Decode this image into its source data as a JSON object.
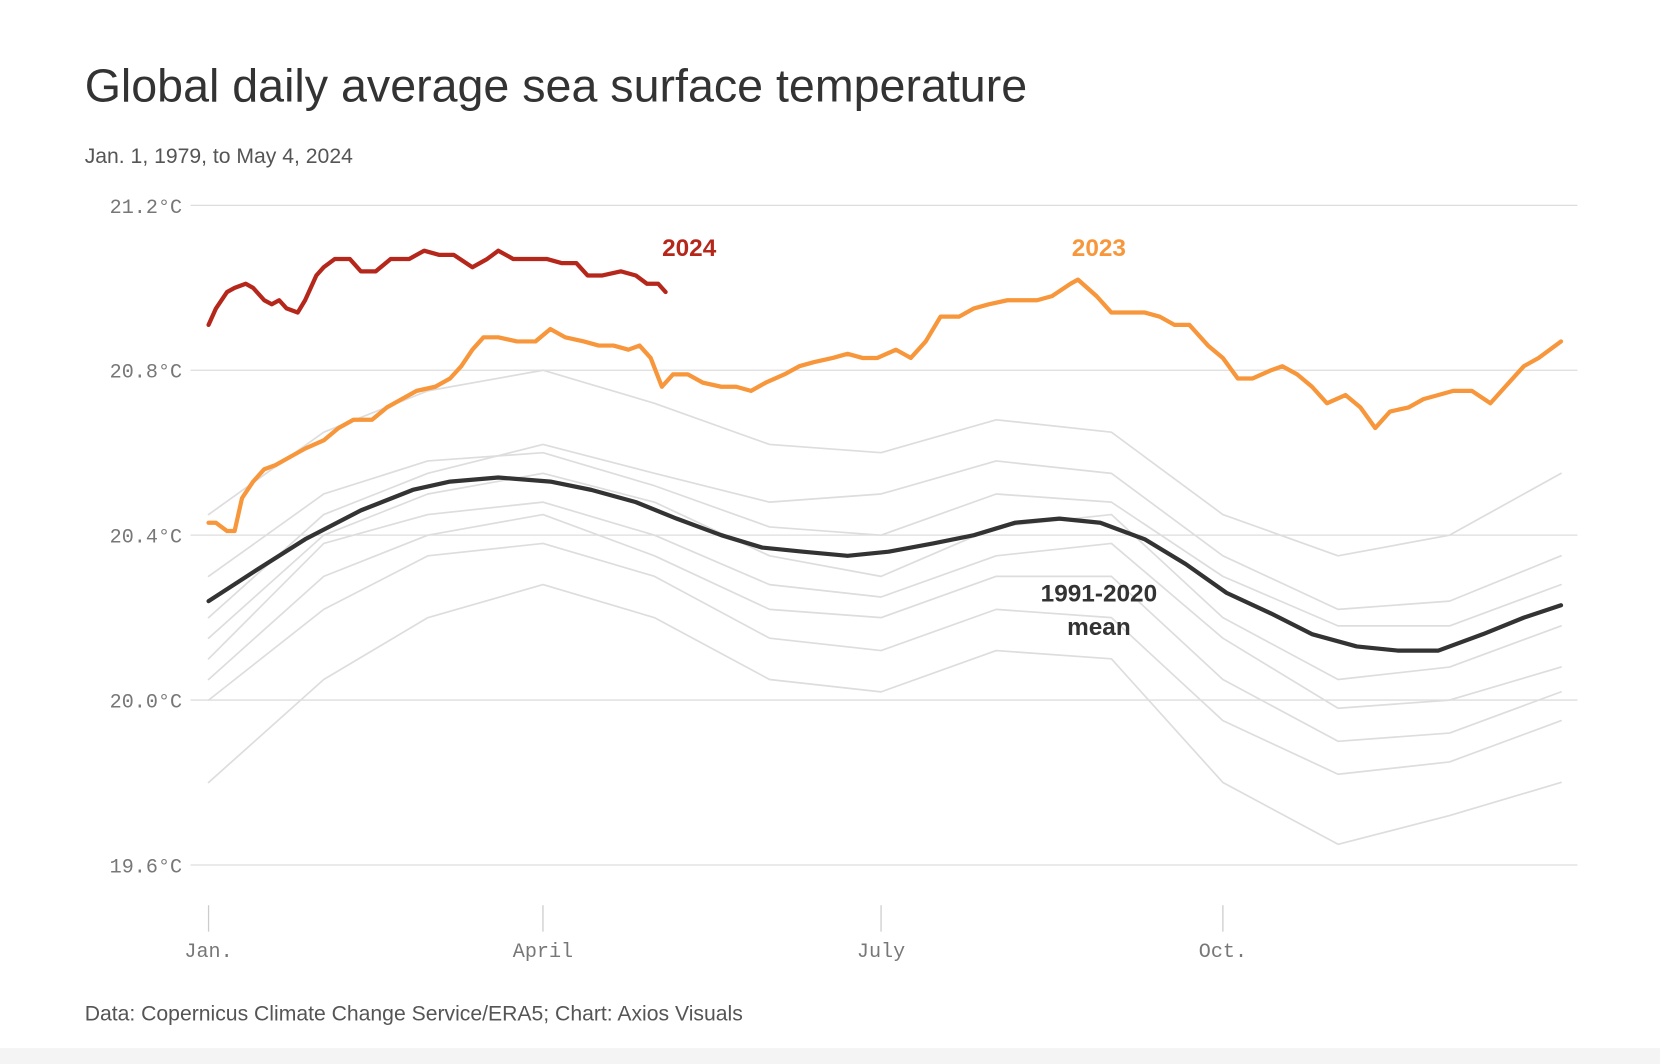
{
  "chart_data": {
    "type": "line",
    "title": "Global daily average sea surface temperature",
    "subtitle": "Jan. 1, 1979, to May 4, 2024",
    "source": "Data: Copernicus Climate Change Service/ERA5; Chart: Axios Visuals",
    "xlim": [
      1,
      366
    ],
    "ylim": [
      19.6,
      21.2
    ],
    "xticks": [
      {
        "value": 1,
        "label": "Jan."
      },
      {
        "value": 91,
        "label": "April"
      },
      {
        "value": 182,
        "label": "July"
      },
      {
        "value": 274,
        "label": "Oct."
      }
    ],
    "yticks": [
      {
        "value": 19.6,
        "label": "19.6°C"
      },
      {
        "value": 20.0,
        "label": "20.0°C"
      },
      {
        "value": 20.4,
        "label": "20.4°C"
      },
      {
        "value": 20.8,
        "label": "20.8°C"
      },
      {
        "value": 21.2,
        "label": "21.2°C"
      }
    ],
    "grid": true,
    "series": [
      {
        "color": "#dddddd",
        "x": [
          1,
          32,
          60,
          91,
          121,
          152,
          182,
          213,
          244,
          274,
          305,
          335,
          365
        ],
        "values": [
          20.3,
          20.5,
          20.58,
          20.6,
          20.52,
          20.42,
          20.4,
          20.5,
          20.48,
          20.3,
          20.18,
          20.18,
          20.28
        ]
      },
      {
        "color": "#dddddd",
        "x": [
          1,
          32,
          60,
          91,
          121,
          152,
          182,
          213,
          244,
          274,
          305,
          335,
          365
        ],
        "values": [
          20.05,
          20.3,
          20.4,
          20.45,
          20.35,
          20.22,
          20.2,
          20.3,
          20.3,
          20.05,
          19.9,
          19.92,
          20.02
        ]
      },
      {
        "color": "#dddddd",
        "x": [
          1,
          32,
          60,
          91,
          121,
          152,
          182,
          213,
          244,
          274,
          305,
          335,
          365
        ],
        "values": [
          20.1,
          20.38,
          20.45,
          20.48,
          20.4,
          20.28,
          20.25,
          20.35,
          20.38,
          20.15,
          19.98,
          20.0,
          20.08
        ]
      },
      {
        "color": "#dddddd",
        "x": [
          1,
          32,
          60,
          91,
          121,
          152,
          182,
          213,
          244,
          274,
          305,
          335,
          365
        ],
        "values": [
          20.2,
          20.45,
          20.55,
          20.62,
          20.55,
          20.48,
          20.5,
          20.58,
          20.55,
          20.35,
          20.22,
          20.24,
          20.35
        ]
      },
      {
        "color": "#dddddd",
        "x": [
          1,
          32,
          60,
          91,
          121,
          152,
          182,
          213,
          244,
          274,
          305,
          335,
          365
        ],
        "values": [
          19.8,
          20.05,
          20.2,
          20.28,
          20.2,
          20.05,
          20.02,
          20.12,
          20.1,
          19.8,
          19.65,
          19.72,
          19.8
        ]
      },
      {
        "color": "#dddddd",
        "x": [
          1,
          32,
          60,
          91,
          121,
          152,
          182,
          213,
          244,
          274,
          305,
          335,
          365
        ],
        "values": [
          20.45,
          20.65,
          20.75,
          20.8,
          20.72,
          20.62,
          20.6,
          20.68,
          20.65,
          20.45,
          20.35,
          20.4,
          20.55
        ]
      },
      {
        "color": "#dddddd",
        "x": [
          1,
          32,
          60,
          91,
          121,
          152,
          182,
          213,
          244,
          274,
          305,
          335,
          365
        ],
        "values": [
          20.0,
          20.22,
          20.35,
          20.38,
          20.3,
          20.15,
          20.12,
          20.22,
          20.2,
          19.95,
          19.82,
          19.85,
          19.95
        ]
      },
      {
        "color": "#dddddd",
        "x": [
          1,
          32,
          60,
          91,
          121,
          152,
          182,
          213,
          244,
          274,
          305,
          335,
          365
        ],
        "values": [
          20.15,
          20.4,
          20.5,
          20.55,
          20.48,
          20.35,
          20.3,
          20.42,
          20.45,
          20.2,
          20.05,
          20.08,
          20.18
        ]
      },
      {
        "name": "1991-2020 mean",
        "color": "#333333",
        "x": [
          1,
          13,
          27,
          42,
          56,
          66,
          79,
          93,
          104,
          116,
          127,
          139,
          150,
          161,
          173,
          184,
          196,
          207,
          218,
          230,
          241,
          253,
          264,
          275,
          287,
          298,
          310,
          321,
          332,
          344,
          355,
          365
        ],
        "values": [
          20.24,
          20.31,
          20.39,
          20.46,
          20.51,
          20.53,
          20.54,
          20.53,
          20.51,
          20.48,
          20.44,
          20.4,
          20.37,
          20.36,
          20.35,
          20.36,
          20.38,
          20.4,
          20.43,
          20.44,
          20.43,
          20.39,
          20.33,
          20.26,
          20.21,
          20.16,
          20.13,
          20.12,
          20.12,
          20.16,
          20.2,
          20.23
        ]
      },
      {
        "name": "2023",
        "color": "#f7963a",
        "x": [
          1,
          3,
          6,
          8,
          10,
          13,
          16,
          19,
          23,
          27,
          32,
          36,
          40,
          45,
          49,
          53,
          57,
          62,
          66,
          69,
          72,
          75,
          79,
          84,
          89,
          93,
          97,
          102,
          106,
          110,
          114,
          117,
          120,
          123,
          126,
          130,
          134,
          139,
          143,
          147,
          151,
          156,
          160,
          164,
          169,
          173,
          177,
          181,
          186,
          190,
          194,
          198,
          203,
          207,
          211,
          216,
          220,
          224,
          228,
          233,
          235,
          240,
          244,
          248,
          253,
          257,
          261,
          265,
          270,
          274,
          278,
          282,
          287,
          290,
          294,
          298,
          302,
          307,
          311,
          315,
          319,
          324,
          328,
          332,
          336,
          341,
          346,
          350,
          355,
          359,
          365
        ],
        "values": [
          20.43,
          20.43,
          20.41,
          20.41,
          20.49,
          20.53,
          20.56,
          20.57,
          20.59,
          20.61,
          20.63,
          20.66,
          20.68,
          20.68,
          20.71,
          20.73,
          20.75,
          20.76,
          20.78,
          20.81,
          20.85,
          20.88,
          20.88,
          20.87,
          20.87,
          20.9,
          20.88,
          20.87,
          20.86,
          20.86,
          20.85,
          20.86,
          20.83,
          20.76,
          20.79,
          20.79,
          20.77,
          20.76,
          20.76,
          20.75,
          20.77,
          20.79,
          20.81,
          20.82,
          20.83,
          20.84,
          20.83,
          20.83,
          20.85,
          20.83,
          20.87,
          20.93,
          20.93,
          20.95,
          20.96,
          20.97,
          20.97,
          20.97,
          20.98,
          21.01,
          21.02,
          20.98,
          20.94,
          20.94,
          20.94,
          20.93,
          20.91,
          20.91,
          20.86,
          20.83,
          20.78,
          20.78,
          20.8,
          20.81,
          20.79,
          20.76,
          20.72,
          20.74,
          20.71,
          20.66,
          20.7,
          20.71,
          20.73,
          20.74,
          20.75,
          20.75,
          20.72,
          20.76,
          20.81,
          20.83,
          20.87
        ]
      },
      {
        "name": "2024",
        "color": "#b5271b",
        "x": [
          1,
          3,
          6,
          8,
          11,
          13,
          16,
          18,
          20,
          22,
          25,
          27,
          30,
          32,
          35,
          39,
          42,
          46,
          50,
          55,
          59,
          63,
          67,
          72,
          76,
          79,
          83,
          87,
          92,
          96,
          100,
          103,
          107,
          112,
          116,
          119,
          122,
          124
        ],
        "values": [
          20.91,
          20.95,
          20.99,
          21.0,
          21.01,
          21.0,
          20.97,
          20.96,
          20.97,
          20.95,
          20.94,
          20.97,
          21.03,
          21.05,
          21.07,
          21.07,
          21.04,
          21.04,
          21.07,
          21.07,
          21.09,
          21.08,
          21.08,
          21.05,
          21.07,
          21.09,
          21.07,
          21.07,
          21.07,
          21.06,
          21.06,
          21.03,
          21.03,
          21.04,
          21.03,
          21.01,
          21.01,
          20.99
        ]
      }
    ]
  }
}
